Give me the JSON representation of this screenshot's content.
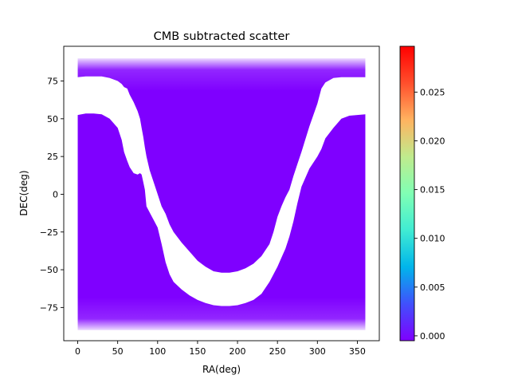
{
  "chart_data": {
    "type": "scatter",
    "title": "CMB subtracted scatter",
    "xlabel": "RA(deg)",
    "ylabel": "DEC(deg)",
    "xlim": [
      -17.5,
      377.5
    ],
    "ylim": [
      -97,
      98
    ],
    "xticks": [
      0,
      50,
      100,
      150,
      200,
      250,
      300,
      350
    ],
    "yticks": [
      -75,
      -50,
      -25,
      0,
      25,
      50,
      75
    ],
    "grid": false,
    "point_color": "#7f00ff",
    "fill_extent": {
      "ra": [
        0,
        360
      ],
      "dec": [
        -90,
        90
      ]
    },
    "masked_band": {
      "ra": [
        0,
        10,
        20,
        30,
        40,
        50,
        55,
        58,
        62,
        65,
        70,
        75,
        78,
        80,
        82,
        84,
        86,
        90,
        95,
        100,
        105,
        110,
        115,
        120,
        130,
        140,
        150,
        160,
        170,
        180,
        190,
        200,
        210,
        220,
        230,
        240,
        245,
        250,
        255,
        260,
        265,
        270,
        275,
        280,
        290,
        300,
        305,
        310,
        320,
        330,
        340,
        350,
        360
      ],
      "dec_upper": [
        77.5,
        78,
        78,
        78,
        77,
        75,
        73,
        71,
        70,
        66,
        61,
        55,
        50,
        44,
        38,
        31,
        25,
        16,
        8,
        0,
        -8,
        -13,
        -20,
        -25,
        -32,
        -38,
        -44,
        -48,
        -51,
        -52,
        -52,
        -51,
        -49,
        -46,
        -41,
        -33,
        -25,
        -15,
        -8,
        -2,
        3,
        12,
        20,
        28,
        45,
        60,
        70,
        74,
        77,
        77.5,
        77.5,
        77.5,
        77.5
      ],
      "dec_lower": [
        52.5,
        53.5,
        53.5,
        53,
        50,
        44,
        36,
        28,
        22,
        18,
        14,
        13,
        14,
        13,
        8,
        3,
        -8,
        -12,
        -17,
        -22,
        -33,
        -45,
        -53,
        -58,
        -63,
        -67,
        -70,
        -72,
        -73.5,
        -74,
        -74,
        -73.5,
        -72,
        -70,
        -66,
        -58,
        -53,
        -48,
        -42,
        -36,
        -28,
        -18,
        -6,
        5,
        17,
        25,
        30,
        37,
        44,
        50,
        52,
        52.5,
        53
      ]
    },
    "colorbar": {
      "cmap": "rainbow",
      "range": [
        -0.0005,
        0.0297
      ],
      "ticks": [
        "0.000",
        "0.005",
        "0.010",
        "0.015",
        "0.020",
        "0.025"
      ],
      "tick_values": [
        0,
        0.005,
        0.01,
        0.015,
        0.02,
        0.025
      ]
    }
  }
}
